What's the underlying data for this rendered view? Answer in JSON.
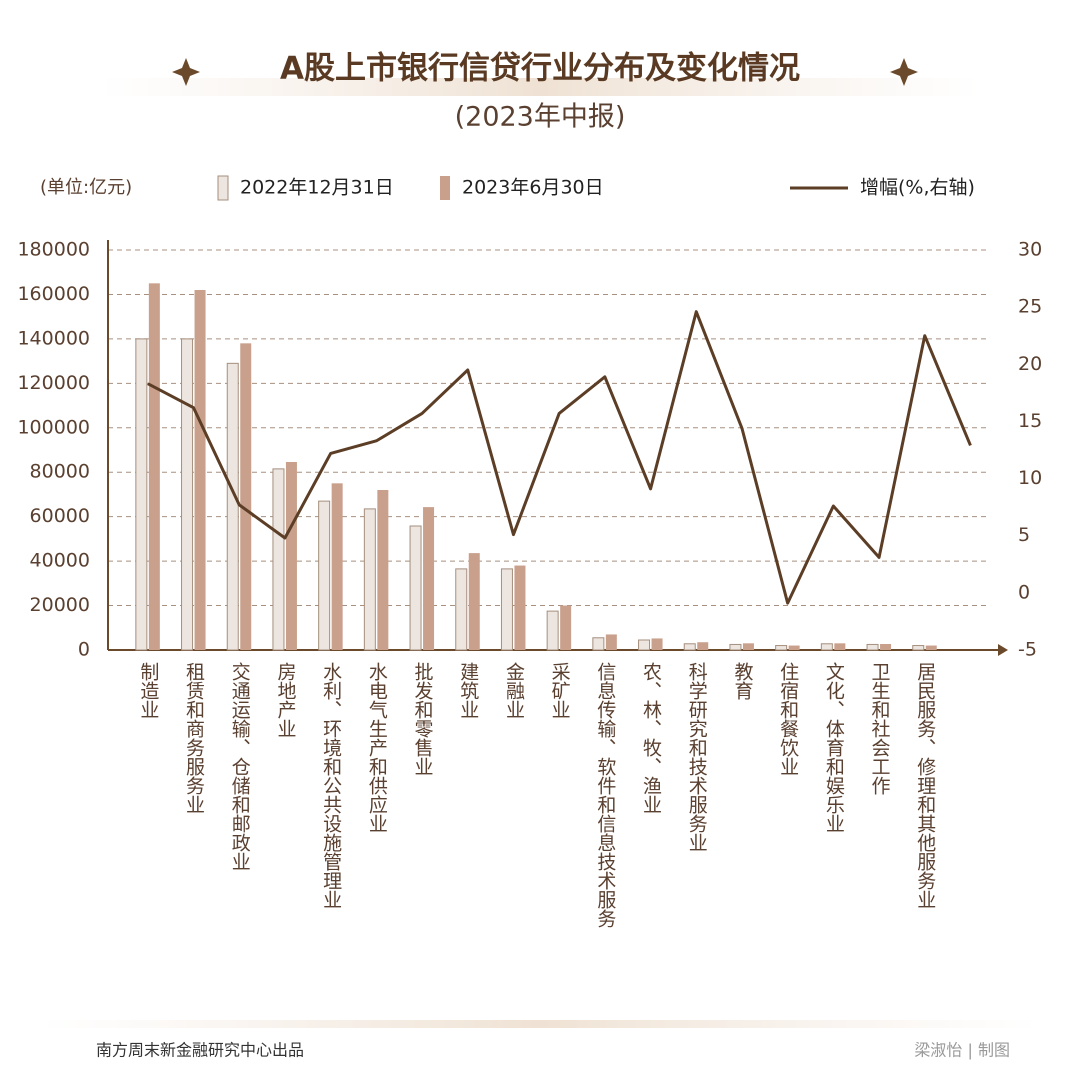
{
  "chart_data": {
    "type": "bar_line",
    "title": "A股上市银行信贷行业分布及变化情况",
    "subtitle": "(2023年中报)",
    "unit_label": "(单位:亿元)",
    "footer_left": "南方周末新金融研究中心出品",
    "footer_right": "梁淑怡 | 制图",
    "categories": [
      "制造业",
      "租赁和商务服务业",
      "交通运输、仓储和邮政业",
      "房地产业",
      "水利、环境和公共设施管理业",
      "水电气生产和供应业",
      "批发和零售业",
      "建筑业",
      "金融业",
      "采矿业",
      "信息传输、软件和信息技术服务",
      "农、林、牧、渔业",
      "科学研究和技术服务业",
      "教育",
      "住宿和餐饮业",
      "文化、体育和娱乐业",
      "卫生和社会工作",
      "居民服务、修理和其他服务业",
      null
    ],
    "series": [
      {
        "name": "2022年12月31日",
        "color": "#ede5df",
        "axis": "y",
        "values": [
          140000,
          140000,
          129000,
          81500,
          67000,
          63500,
          55800,
          36500,
          36500,
          17500,
          5500,
          4500,
          2800,
          2500,
          2000,
          2800,
          2500,
          2000,
          null
        ]
      },
      {
        "name": "2023年6月30日",
        "color": "#c9a08c",
        "axis": "y",
        "values": [
          165000,
          162000,
          138000,
          84600,
          75000,
          72000,
          64300,
          43600,
          38000,
          20000,
          7000,
          5200,
          3500,
          3000,
          2000,
          3000,
          2700,
          2000,
          null
        ]
      },
      {
        "name": "增幅(%,右轴)",
        "color": "#5c3e26",
        "axis": "y2",
        "values": [
          18.3,
          16.2,
          7.7,
          4.8,
          12.2,
          13.3,
          15.7,
          19.5,
          5.1,
          15.7,
          18.9,
          9.1,
          24.6,
          14.4,
          -0.9,
          7.6,
          3.1,
          22.5,
          12.9
        ]
      }
    ],
    "ylim": [
      0,
      180000
    ],
    "yticks": [
      0,
      20000,
      40000,
      60000,
      80000,
      100000,
      120000,
      140000,
      160000,
      180000
    ],
    "y2lim": [
      -5,
      30
    ],
    "y2ticks": [
      -5,
      0,
      5,
      10,
      15,
      20,
      25,
      30
    ],
    "grid": true
  }
}
